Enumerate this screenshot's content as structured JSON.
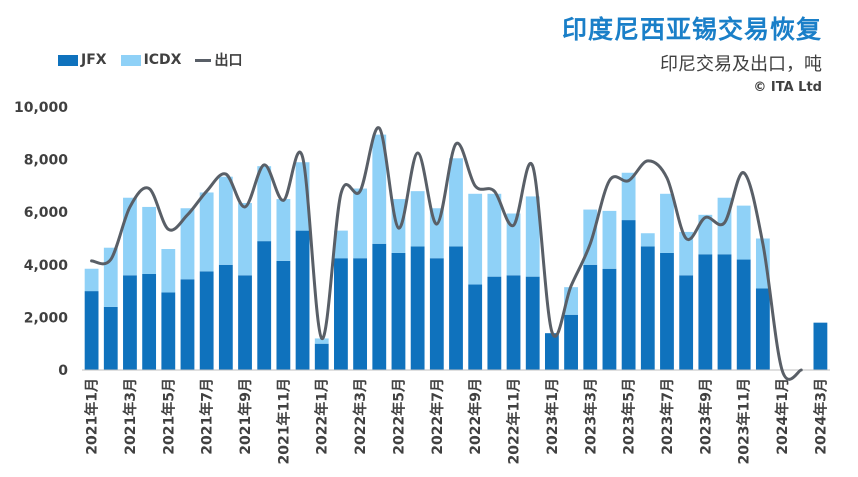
{
  "title": "印度尼西亚锡交易恢复",
  "subtitle": "印尼交易及出口，吨",
  "source": "© ITA Ltd",
  "colors": {
    "jfx": "#0f72bd",
    "icdx": "#8fd1f7",
    "export": "#595f67",
    "axis": "#bfbfbf",
    "text": "#404040"
  },
  "chart_data": {
    "type": "bar",
    "stacked": true,
    "title": "印度尼西亚锡交易恢复",
    "subtitle": "印尼交易及出口，吨",
    "ylim": [
      0,
      10000
    ],
    "yticks": [
      "0",
      "2,000",
      "4,000",
      "6,000",
      "8,000",
      "10,000"
    ],
    "grid": false,
    "legend_position": "top-left",
    "categories": [
      "2021年1月",
      "2021年2月",
      "2021年3月",
      "2021年4月",
      "2021年5月",
      "2021年6月",
      "2021年7月",
      "2021年8月",
      "2021年9月",
      "2021年10月",
      "2021年11月",
      "2021年12月",
      "2022年1月",
      "2022年2月",
      "2022年3月",
      "2022年4月",
      "2022年5月",
      "2022年6月",
      "2022年7月",
      "2022年8月",
      "2022年9月",
      "2022年10月",
      "2022年11月",
      "2022年12月",
      "2023年1月",
      "2023年2月",
      "2023年3月",
      "2023年4月",
      "2023年5月",
      "2023年6月",
      "2023年7月",
      "2023年8月",
      "2023年9月",
      "2023年10月",
      "2023年11月",
      "2023年12月",
      "2024年1月",
      "2024年2月",
      "2024年3月"
    ],
    "tick_labels": [
      "2021年1月",
      "2021年3月",
      "2021年5月",
      "2021年7月",
      "2021年9月",
      "2021年11月",
      "2022年1月",
      "2022年3月",
      "2022年5月",
      "2022年7月",
      "2022年9月",
      "2022年11月",
      "2023年1月",
      "2023年3月",
      "2023年5月",
      "2023年7月",
      "2023年9月",
      "2023年11月",
      "2024年1月",
      "2024年3月"
    ],
    "series": [
      {
        "name": "JFX",
        "kind": "bar",
        "values": [
          3000,
          2400,
          3600,
          3650,
          2950,
          3450,
          3750,
          4000,
          3600,
          4900,
          4150,
          5300,
          1000,
          4250,
          4250,
          4800,
          4450,
          4700,
          4250,
          4700,
          3250,
          3550,
          3600,
          3550,
          1400,
          2100,
          4000,
          3850,
          5700,
          4700,
          4450,
          3600,
          4400,
          4400,
          4200,
          3100,
          0,
          0,
          1800
        ]
      },
      {
        "name": "ICDX",
        "kind": "bar",
        "values": [
          850,
          2250,
          2950,
          2550,
          1650,
          2700,
          3000,
          3350,
          2750,
          2850,
          2350,
          2600,
          200,
          1050,
          2650,
          4150,
          2050,
          2100,
          1900,
          3350,
          3450,
          3150,
          2350,
          3050,
          0,
          1050,
          2100,
          2200,
          1800,
          500,
          2250,
          1650,
          1500,
          2150,
          2050,
          1900,
          0,
          0,
          0
        ]
      },
      {
        "name": "出口",
        "kind": "line",
        "values": [
          4150,
          4200,
          6200,
          6900,
          5350,
          5900,
          6800,
          7450,
          6200,
          7800,
          6450,
          8100,
          1200,
          6700,
          6800,
          9200,
          5400,
          8250,
          5550,
          8600,
          7000,
          6800,
          5500,
          7750,
          1450,
          3200,
          4800,
          7200,
          7200,
          7950,
          7300,
          5000,
          5800,
          5600,
          7500,
          4800,
          0,
          0,
          null
        ]
      }
    ]
  }
}
